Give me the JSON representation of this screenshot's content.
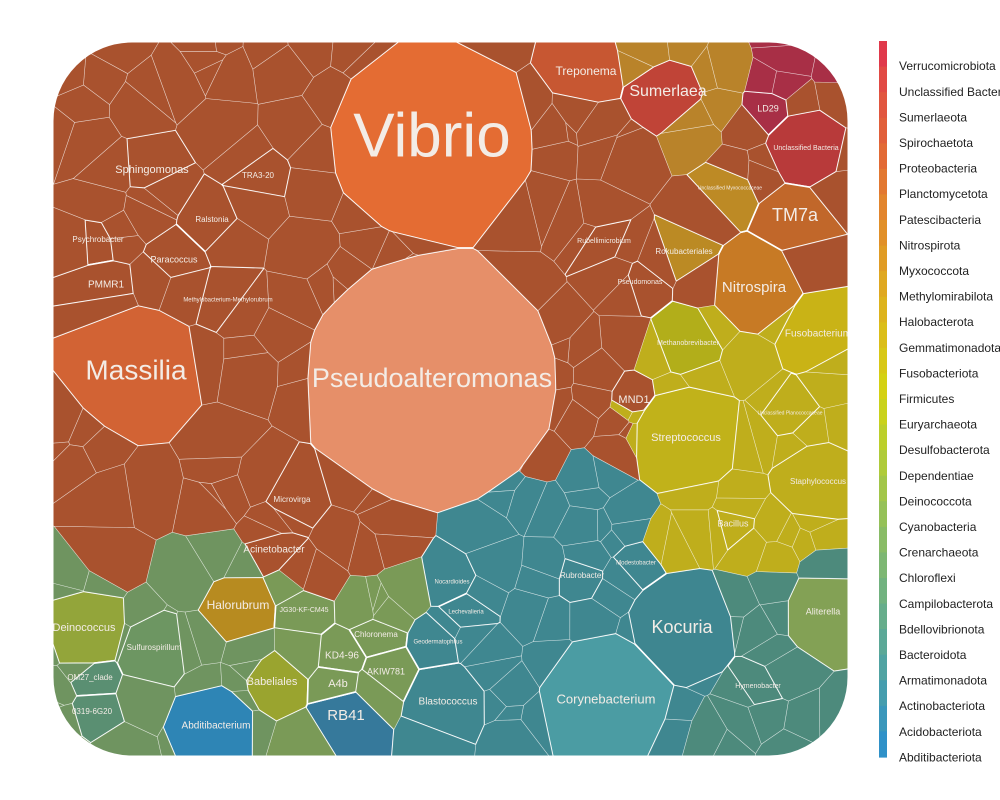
{
  "chart_data": {
    "type": "voronoi-treemap",
    "legend": {
      "position": "right",
      "entries": [
        {
          "name": "Verrucomicrobiota",
          "color": "#e0394b"
        },
        {
          "name": "Unclassified Bacteria",
          "color": "#e14a44"
        },
        {
          "name": "Sumerlaeota",
          "color": "#e1563f"
        },
        {
          "name": "Spirochaetota",
          "color": "#e15f3a"
        },
        {
          "name": "Proteobacteria",
          "color": "#e26a35"
        },
        {
          "name": "Planctomycetota",
          "color": "#e27831"
        },
        {
          "name": "Patescibacteria",
          "color": "#e2852d"
        },
        {
          "name": "Nitrospirota",
          "color": "#e19029"
        },
        {
          "name": "Myxococcota",
          "color": "#e09c25"
        },
        {
          "name": "Methylomirabilota",
          "color": "#dfa821"
        },
        {
          "name": "Halobacterota",
          "color": "#ddb31d"
        },
        {
          "name": "Gemmatimonadota",
          "color": "#dbbe19"
        },
        {
          "name": "Fusobacteriota",
          "color": "#d8c816"
        },
        {
          "name": "Firmicutes",
          "color": "#d4d113"
        },
        {
          "name": "Euryarchaeota",
          "color": "#c9d21c"
        },
        {
          "name": "Desulfobacterota",
          "color": "#bccf2b"
        },
        {
          "name": "Dependentiae",
          "color": "#afcb3a"
        },
        {
          "name": "Deinococcota",
          "color": "#a2c649"
        },
        {
          "name": "Cyanobacteria",
          "color": "#95c158"
        },
        {
          "name": "Crenarchaeota",
          "color": "#89bc66"
        },
        {
          "name": "Chloroflexi",
          "color": "#7db773"
        },
        {
          "name": "Campilobacterota",
          "color": "#71b27f"
        },
        {
          "name": "Bdellovibrionota",
          "color": "#66ad8b"
        },
        {
          "name": "Bacteroidota",
          "color": "#5ba897"
        },
        {
          "name": "Armatimonadota",
          "color": "#50a3a2"
        },
        {
          "name": "Actinobacteriota",
          "color": "#459dae"
        },
        {
          "name": "Acidobacteriota",
          "color": "#3a97bb"
        },
        {
          "name": "Abditibacteriota",
          "color": "#2f91c8"
        }
      ]
    },
    "groups": [
      {
        "name": "Proteobacteria",
        "color": "#a9522e"
      },
      {
        "name": "Actinobacteriota",
        "color": "#3f8790"
      },
      {
        "name": "Firmicutes",
        "color": "#bfae1c"
      },
      {
        "name": "Chloroflexi",
        "color": "#7a9a57"
      },
      {
        "name": "Bacteroidota",
        "color": "#4d8a7c"
      }
    ],
    "cells": [
      {
        "name": "Vibrio",
        "group": "Proteobacteria",
        "color": "#e46c33",
        "fontsize": 62
      },
      {
        "name": "Pseudoalteromonas",
        "group": "Proteobacteria",
        "color": "#e68f69",
        "fontsize": 27
      },
      {
        "name": "Massilia",
        "group": "Proteobacteria",
        "color": "#d26334",
        "fontsize": 28
      },
      {
        "name": "Sphingomonas",
        "group": "Proteobacteria",
        "color": "#a9522e",
        "fontsize": 11
      },
      {
        "name": "Psychrobacter",
        "group": "Proteobacteria",
        "color": "#a9522e",
        "fontsize": 8
      },
      {
        "name": "Paracoccus",
        "group": "Proteobacteria",
        "color": "#a9522e",
        "fontsize": 9
      },
      {
        "name": "PMMR1",
        "group": "Proteobacteria",
        "color": "#a9522e",
        "fontsize": 10
      },
      {
        "name": "Ralstonia",
        "group": "Proteobacteria",
        "color": "#a9522e",
        "fontsize": 8
      },
      {
        "name": "TRA3-20",
        "group": "Proteobacteria",
        "color": "#a9522e",
        "fontsize": 8
      },
      {
        "name": "Methylobacterium-Methylorubrum",
        "group": "Proteobacteria",
        "color": "#a9522e",
        "fontsize": 6
      },
      {
        "name": "Acinetobacter",
        "group": "Proteobacteria",
        "color": "#a9522e",
        "fontsize": 10
      },
      {
        "name": "Microvirga",
        "group": "Proteobacteria",
        "color": "#a9522e",
        "fontsize": 8
      },
      {
        "name": "Treponema",
        "group": "Spirochaetota",
        "color": "#c75732",
        "fontsize": 12
      },
      {
        "name": "Sumerlaea",
        "group": "Sumerlaeota",
        "color": "#c04437",
        "fontsize": 16
      },
      {
        "name": "Unclassified Bacteria",
        "group": "Unclassified Bacteria",
        "color": "#b83a3a",
        "fontsize": 7
      },
      {
        "name": "LD29",
        "group": "Verrucomicrobiota",
        "color": "#a82f46",
        "fontsize": 9
      },
      {
        "name": "TM7a",
        "group": "Patescibacteria",
        "color": "#c1672a",
        "fontsize": 18
      },
      {
        "name": "Nitrospira",
        "group": "Nitrospirota",
        "color": "#c77a25",
        "fontsize": 15
      },
      {
        "name": "Rokubacteriales",
        "group": "Methylomirabilota",
        "color": "#bb8a24",
        "fontsize": 8
      },
      {
        "name": "Fusobacterium",
        "group": "Fusobacteriota",
        "color": "#c9b316",
        "fontsize": 10
      },
      {
        "name": "Methanobrevibacter",
        "group": "Euryarchaeota",
        "color": "#b2ae1a",
        "fontsize": 7
      },
      {
        "name": "Streptococcus",
        "group": "Firmicutes",
        "color": "#c1b21a",
        "fontsize": 11
      },
      {
        "name": "Staphylococcus",
        "group": "Firmicutes",
        "color": "#bfae1c",
        "fontsize": 8
      },
      {
        "name": "Bacillus",
        "group": "Firmicutes",
        "color": "#bfae1c",
        "fontsize": 9
      },
      {
        "name": "MND1",
        "group": "Proteobacteria",
        "color": "#a9522e",
        "fontsize": 11
      },
      {
        "name": "Kocuria",
        "group": "Actinobacteriota",
        "color": "#3e8690",
        "fontsize": 18
      },
      {
        "name": "Corynebacterium",
        "group": "Actinobacteriota",
        "color": "#4b9ca3",
        "fontsize": 13
      },
      {
        "name": "Blastococcus",
        "group": "Actinobacteriota",
        "color": "#3f8790",
        "fontsize": 10
      },
      {
        "name": "Rubrobacter",
        "group": "Actinobacteriota",
        "color": "#3f8790",
        "fontsize": 8
      },
      {
        "name": "RB41",
        "group": "Acidobacteriota",
        "color": "#36799b",
        "fontsize": 15
      },
      {
        "name": "Abditibacterium",
        "group": "Abditibacteriota",
        "color": "#2e85b5",
        "fontsize": 10
      },
      {
        "name": "Babeliales",
        "group": "Dependentiae",
        "color": "#9aa42f",
        "fontsize": 11
      },
      {
        "name": "Halorubrum",
        "group": "Halobacterota",
        "color": "#b78b20",
        "fontsize": 12
      },
      {
        "name": "Deinococcus",
        "group": "Deinococcota",
        "color": "#93a53a",
        "fontsize": 11
      },
      {
        "name": "Sulfurospirillum",
        "group": "Campilobacterota",
        "color": "#6d9662",
        "fontsize": 8
      },
      {
        "name": "Chloronema",
        "group": "Chloroflexi",
        "color": "#7a9a57",
        "fontsize": 8
      },
      {
        "name": "KD4-96",
        "group": "Chloroflexi",
        "color": "#7a9a57",
        "fontsize": 10
      },
      {
        "name": "AKIW781",
        "group": "Chloroflexi",
        "color": "#7a9a57",
        "fontsize": 9
      },
      {
        "name": "A4b",
        "group": "Chloroflexi",
        "color": "#7a9a57",
        "fontsize": 11
      },
      {
        "name": "JG30-KF-CM45",
        "group": "Chloroflexi",
        "color": "#7a9a57",
        "fontsize": 7
      },
      {
        "name": "Aliterella",
        "group": "Cyanobacteria",
        "color": "#83a155",
        "fontsize": 9
      },
      {
        "name": "Hymenobacter",
        "group": "Bacteroidota",
        "color": "#4d8a7c",
        "fontsize": 7
      },
      {
        "name": "OM27_clade",
        "group": "Bdellovibrionota",
        "color": "#5a8f72",
        "fontsize": 8
      },
      {
        "name": "0319-6G20",
        "group": "Bdellovibrionota",
        "color": "#5a8f72",
        "fontsize": 8
      },
      {
        "name": "Rubellimicrobium",
        "group": "Proteobacteria",
        "color": "#a9522e",
        "fontsize": 7
      },
      {
        "name": "Pseudomonas",
        "group": "Proteobacteria",
        "color": "#a9522e",
        "fontsize": 7
      },
      {
        "name": "Unclassified Myxococcaceae",
        "group": "Myxococcota",
        "color": "#bd8a25",
        "fontsize": 5
      },
      {
        "name": "Unclassified Planococcaceae",
        "group": "Firmicutes",
        "color": "#bfae1c",
        "fontsize": 5
      },
      {
        "name": "Nocardioides",
        "group": "Actinobacteriota",
        "color": "#3f8790",
        "fontsize": 6
      },
      {
        "name": "Geodermatophilus",
        "group": "Actinobacteriota",
        "color": "#3f8790",
        "fontsize": 6
      },
      {
        "name": "Lechevalieria",
        "group": "Actinobacteriota",
        "color": "#3f8790",
        "fontsize": 6
      },
      {
        "name": "Modestobacter",
        "group": "Actinobacteriota",
        "color": "#3f8790",
        "fontsize": 6
      }
    ]
  }
}
